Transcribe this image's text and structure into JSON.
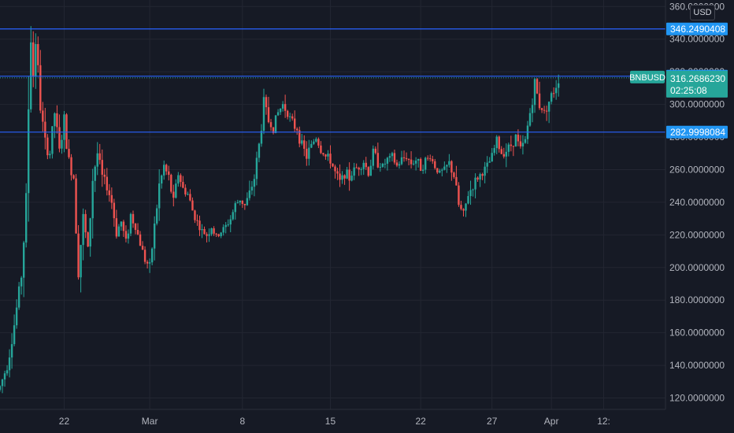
{
  "currency": "USD",
  "symbol": "BNBUSD",
  "countdown": "02:25:08",
  "colors": {
    "background": "#161a25",
    "grid": "#232632",
    "up": "#26a69a",
    "down": "#ef5350",
    "level_line": "#2962ff",
    "level_tag": "#2196f3",
    "last_price": "#26a69a"
  },
  "chart_data": {
    "type": "candlestick",
    "y_axis": {
      "ylim": [
        113,
        364
      ],
      "ticks": [
        "120.0000000",
        "140.0000000",
        "160.0000000",
        "180.0000000",
        "200.0000000",
        "220.0000000",
        "240.0000000",
        "260.0000000",
        "280.0000000",
        "300.0000000",
        "320.0000000",
        "340.0000000",
        "360.0000000"
      ],
      "tick_values": [
        120,
        140,
        160,
        180,
        200,
        220,
        240,
        260,
        280,
        300,
        320,
        340,
        360
      ]
    },
    "x_axis": {
      "xlim": [
        0,
        280
      ],
      "ticks": [
        "22",
        "Mar",
        "8",
        "15",
        "22",
        "27",
        "Apr",
        "12:"
      ],
      "tick_positions": [
        27,
        63,
        102,
        139,
        177,
        207,
        232,
        254
      ]
    },
    "levels": [
      {
        "label": "346.2490408",
        "value": 346.249
      },
      {
        "label": "317.2814994",
        "value": 317.281
      },
      {
        "label": "282.9998084",
        "value": 283.0
      }
    ],
    "last_price": {
      "label": "316.2686230",
      "value": 316.27
    },
    "price_path": [
      [
        0,
        127
      ],
      [
        3,
        140
      ],
      [
        6,
        165
      ],
      [
        9,
        195
      ],
      [
        11,
        240
      ],
      [
        12,
        300
      ],
      [
        13,
        345
      ],
      [
        14,
        318
      ],
      [
        15,
        340
      ],
      [
        17,
        300
      ],
      [
        19,
        275
      ],
      [
        21,
        270
      ],
      [
        23,
        295
      ],
      [
        25,
        270
      ],
      [
        27,
        290
      ],
      [
        29,
        265
      ],
      [
        31,
        255
      ],
      [
        33,
        200
      ],
      [
        35,
        230
      ],
      [
        37,
        210
      ],
      [
        39,
        255
      ],
      [
        41,
        270
      ],
      [
        43,
        255
      ],
      [
        45,
        250
      ],
      [
        47,
        240
      ],
      [
        49,
        222
      ],
      [
        51,
        228
      ],
      [
        53,
        215
      ],
      [
        55,
        232
      ],
      [
        57,
        225
      ],
      [
        59,
        215
      ],
      [
        61,
        205
      ],
      [
        63,
        200
      ],
      [
        65,
        225
      ],
      [
        67,
        250
      ],
      [
        69,
        262
      ],
      [
        71,
        255
      ],
      [
        73,
        240
      ],
      [
        75,
        258
      ],
      [
        77,
        248
      ],
      [
        79,
        245
      ],
      [
        81,
        235
      ],
      [
        83,
        228
      ],
      [
        85,
        222
      ],
      [
        87,
        220
      ],
      [
        89,
        225
      ],
      [
        91,
        218
      ],
      [
        93,
        222
      ],
      [
        95,
        225
      ],
      [
        97,
        230
      ],
      [
        99,
        238
      ],
      [
        101,
        242
      ],
      [
        103,
        238
      ],
      [
        105,
        245
      ],
      [
        107,
        255
      ],
      [
        109,
        275
      ],
      [
        111,
        300
      ],
      [
        113,
        290
      ],
      [
        115,
        285
      ],
      [
        117,
        295
      ],
      [
        119,
        300
      ],
      [
        121,
        295
      ],
      [
        123,
        288
      ],
      [
        125,
        285
      ],
      [
        127,
        275
      ],
      [
        129,
        268
      ],
      [
        131,
        275
      ],
      [
        133,
        280
      ],
      [
        135,
        272
      ],
      [
        137,
        268
      ],
      [
        139,
        266
      ],
      [
        141,
        258
      ],
      [
        143,
        252
      ],
      [
        145,
        258
      ],
      [
        147,
        255
      ],
      [
        149,
        260
      ],
      [
        151,
        262
      ],
      [
        153,
        265
      ],
      [
        155,
        258
      ],
      [
        157,
        270
      ],
      [
        159,
        265
      ],
      [
        161,
        262
      ],
      [
        163,
        266
      ],
      [
        165,
        268
      ],
      [
        167,
        262
      ],
      [
        169,
        266
      ],
      [
        171,
        268
      ],
      [
        173,
        264
      ],
      [
        175,
        266
      ],
      [
        177,
        262
      ],
      [
        179,
        265
      ],
      [
        181,
        268
      ],
      [
        183,
        262
      ],
      [
        185,
        258
      ],
      [
        187,
        260
      ],
      [
        189,
        264
      ],
      [
        191,
        256
      ],
      [
        193,
        238
      ],
      [
        195,
        232
      ],
      [
        197,
        245
      ],
      [
        199,
        250
      ],
      [
        201,
        255
      ],
      [
        203,
        258
      ],
      [
        205,
        262
      ],
      [
        207,
        268
      ],
      [
        209,
        278
      ],
      [
        211,
        270
      ],
      [
        213,
        272
      ],
      [
        215,
        275
      ],
      [
        217,
        280
      ],
      [
        219,
        272
      ],
      [
        221,
        278
      ],
      [
        223,
        295
      ],
      [
        225,
        312
      ],
      [
        227,
        300
      ],
      [
        229,
        295
      ],
      [
        231,
        302
      ],
      [
        233,
        308
      ],
      [
        235,
        316
      ]
    ]
  }
}
